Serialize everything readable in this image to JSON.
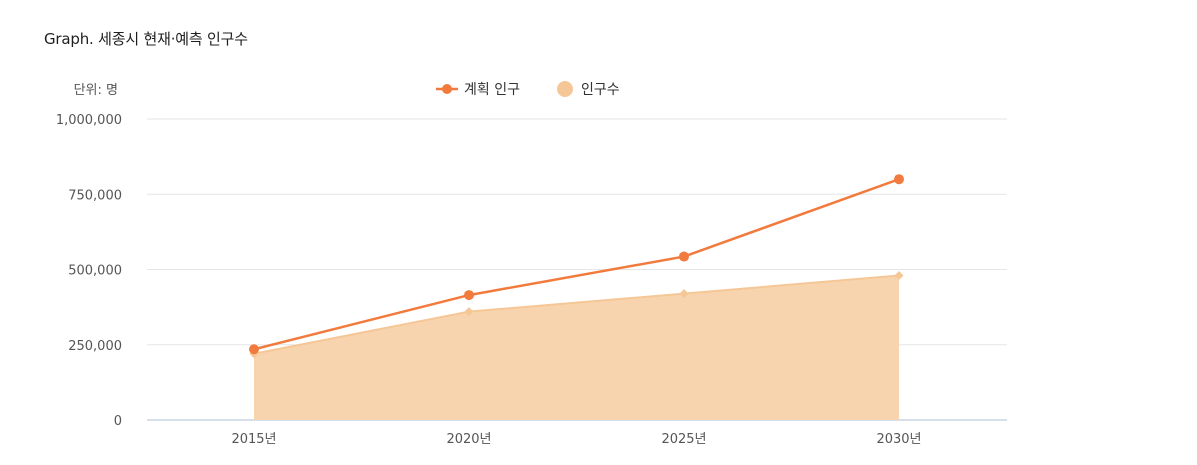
{
  "title": "Graph. 세종시 현재·예측 인구수",
  "unit_label": "단위: 명",
  "colors": {
    "line": "#f27a3c",
    "area_fill": "#f8d4ae",
    "area_marker": "#f5c796",
    "grid": "#e6e6e6",
    "axis": "#c9d6e3"
  },
  "chart_data": {
    "type": "line",
    "categories": [
      "2015년",
      "2020년",
      "2025년",
      "2030년"
    ],
    "series": [
      {
        "name": "계획 인구",
        "type": "line",
        "values": [
          235000,
          415000,
          543000,
          800000
        ]
      },
      {
        "name": "인구수",
        "type": "area",
        "values": [
          220000,
          360000,
          420000,
          480000
        ]
      }
    ],
    "ylim": [
      0,
      1000000
    ],
    "yticks": [
      0,
      250000,
      500000,
      750000,
      1000000
    ],
    "ytick_labels": [
      "0",
      "250,000",
      "500,000",
      "750,000",
      "1,000,000"
    ],
    "grid": true,
    "legend": "top-center"
  }
}
